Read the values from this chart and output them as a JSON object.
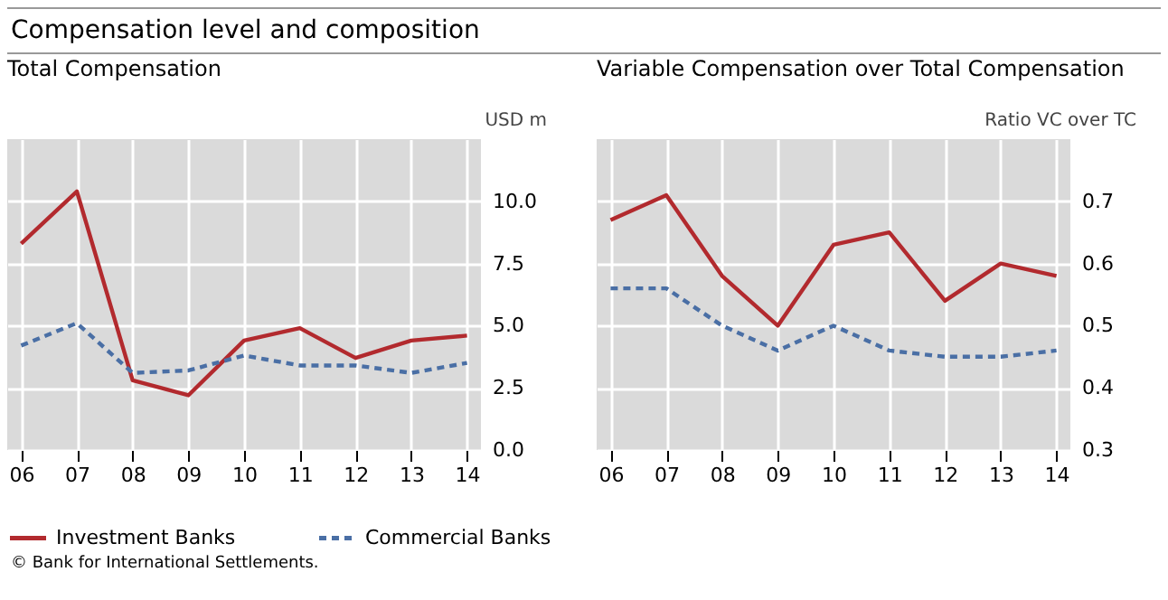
{
  "chart_data": [
    {
      "type": "line",
      "title": "Compensation level and composition",
      "subtitle": "Total Compensation",
      "ylabel": "USD m",
      "categories": [
        "06",
        "07",
        "08",
        "09",
        "10",
        "11",
        "12",
        "13",
        "14"
      ],
      "series": [
        {
          "name": "Investment Banks",
          "color": "#b22a2e",
          "line_style": "solid",
          "values": [
            8.3,
            10.4,
            2.8,
            2.2,
            4.4,
            4.9,
            3.7,
            4.4,
            4.6
          ]
        },
        {
          "name": "Commercial Banks",
          "color": "#4a6fa5",
          "line_style": "dashed",
          "values": [
            4.2,
            5.1,
            3.1,
            3.2,
            3.8,
            3.4,
            3.4,
            3.1,
            3.5
          ]
        }
      ],
      "ylim": [
        0,
        12.5
      ],
      "yticks": [
        {
          "value": 0,
          "label": "0.0"
        },
        {
          "value": 2.5,
          "label": "2.5"
        },
        {
          "value": 5,
          "label": "5.0"
        },
        {
          "value": 7.5,
          "label": "7.5"
        },
        {
          "value": 10,
          "label": "10.0"
        }
      ],
      "grid": true,
      "legend": "bottom",
      "annotations": [
        "© Bank for International Settlements."
      ]
    },
    {
      "type": "line",
      "title": "Variable Compensation over Total Compensation",
      "ylabel": "Ratio VC over TC",
      "categories": [
        "06",
        "07",
        "08",
        "09",
        "10",
        "11",
        "12",
        "13",
        "14"
      ],
      "series": [
        {
          "name": "Investment Banks",
          "color": "#b22a2e",
          "line_style": "solid",
          "values": [
            0.67,
            0.71,
            0.58,
            0.5,
            0.63,
            0.65,
            0.54,
            0.6,
            0.58
          ]
        },
        {
          "name": "Commercial Banks",
          "color": "#4a6fa5",
          "line_style": "dashed",
          "values": [
            0.56,
            0.56,
            0.5,
            0.46,
            0.5,
            0.46,
            0.45,
            0.45,
            0.46
          ]
        }
      ],
      "ylim": [
        0.3,
        0.8
      ],
      "yticks": [
        0.3,
        0.4,
        0.5,
        0.6,
        0.7
      ],
      "grid": true,
      "legend": "bottom"
    }
  ]
}
